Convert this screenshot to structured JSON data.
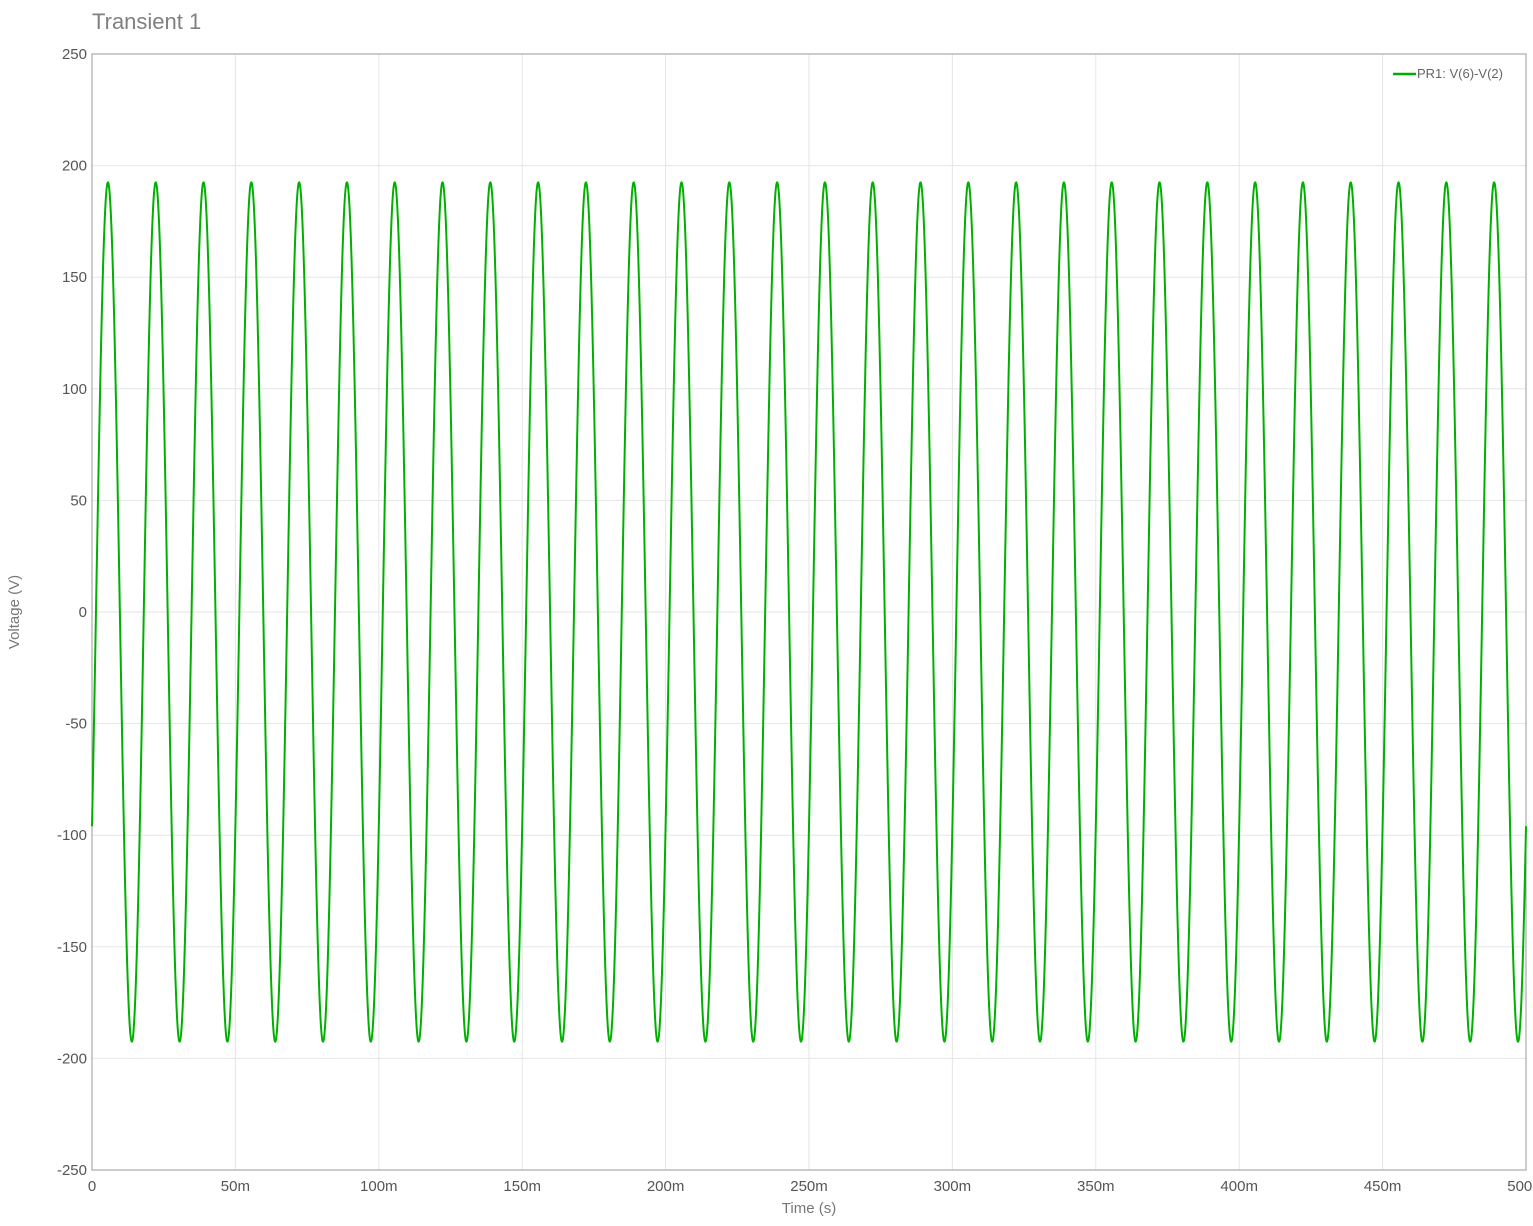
{
  "chart_data": {
    "type": "line",
    "title": "Transient 1",
    "xlabel": "Time (s)",
    "ylabel": "Voltage (V)",
    "xlim": [
      0,
      0.5
    ],
    "ylim": [
      -250,
      250
    ],
    "x_ticks": [
      0,
      0.05,
      0.1,
      0.15,
      0.2,
      0.25,
      0.3,
      0.35,
      0.4,
      0.45,
      0.5
    ],
    "x_tick_labels": [
      "0",
      "50m",
      "100m",
      "150m",
      "200m",
      "250m",
      "300m",
      "350m",
      "400m",
      "450m",
      "500m"
    ],
    "y_ticks": [
      250,
      200,
      150,
      100,
      50,
      0,
      -50,
      -100,
      -150,
      -200,
      -250
    ],
    "y_tick_labels": [
      "250",
      "200",
      "150",
      "100",
      "50",
      "0",
      "-50",
      "-100",
      "-150",
      "-200",
      "-250"
    ],
    "grid": true,
    "legend_position": "top-right",
    "series": [
      {
        "name": "PR1: V(6)-V(2)",
        "color": "#00b000",
        "waveform": "sine",
        "amplitude": 192.5,
        "frequency_hz": 60,
        "start_value": -96,
        "end_value": -96
      }
    ]
  }
}
